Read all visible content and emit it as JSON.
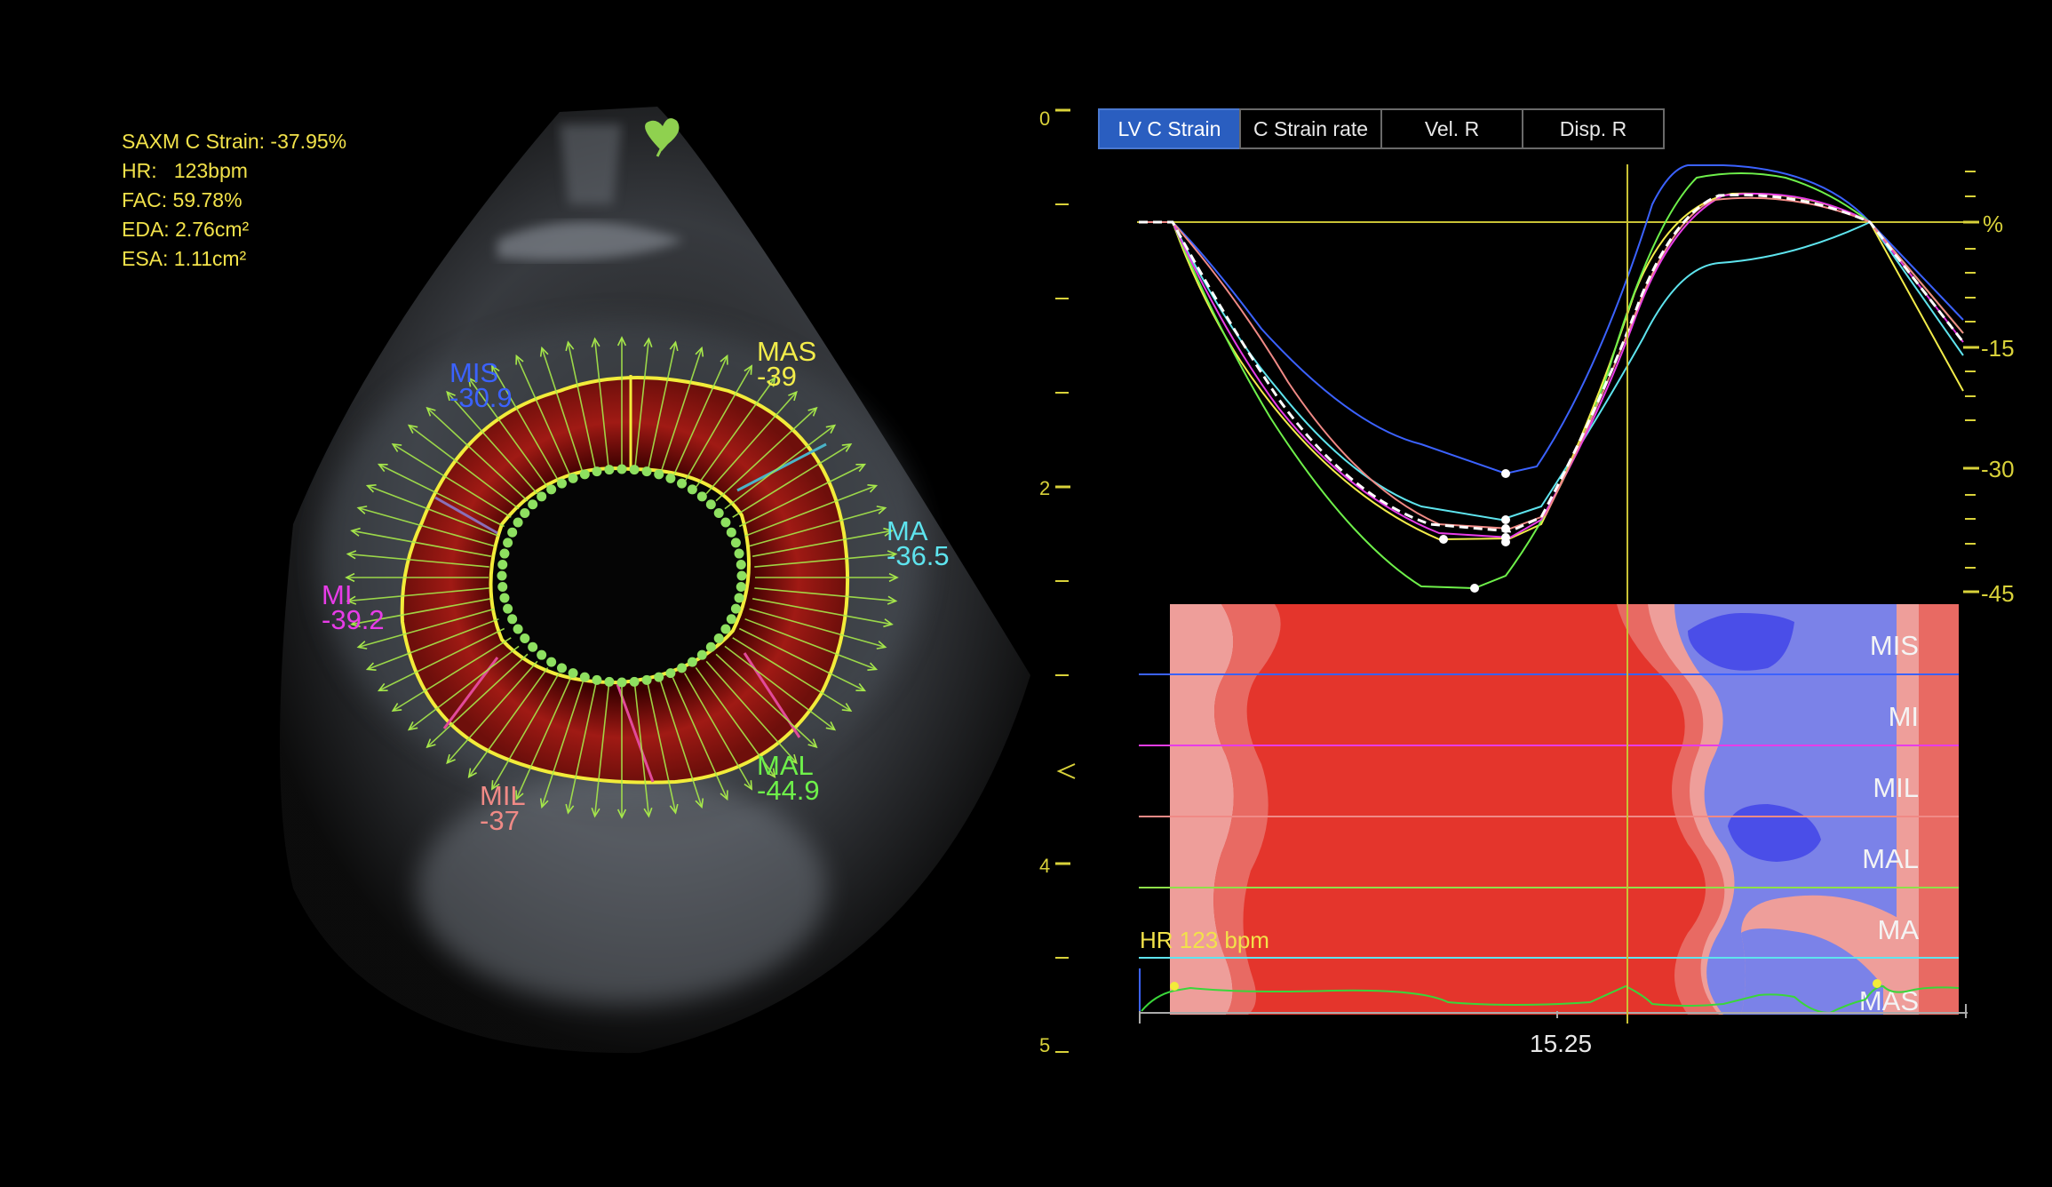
{
  "measurements": {
    "strain": "SAXM C Strain: -37.95%",
    "hr": "HR:   123bpm",
    "fac": "FAC: 59.78%",
    "eda": "EDA: 2.76cm²",
    "esa": "ESA: 1.11cm²"
  },
  "segments": [
    {
      "name": "MIS",
      "value": "-30.9",
      "color": "#3b62ff"
    },
    {
      "name": "MAS",
      "value": "-39",
      "color": "#f2ec4a"
    },
    {
      "name": "MA",
      "value": "-36.5",
      "color": "#5ee4ee"
    },
    {
      "name": "MI",
      "value": "-39.2",
      "color": "#e83ce8"
    },
    {
      "name": "MIL",
      "value": "-37",
      "color": "#f08a86"
    },
    {
      "name": "MAL",
      "value": "-44.9",
      "color": "#6ef04a"
    }
  ],
  "depth_scale": {
    "labels": [
      "0",
      "2",
      "4",
      "5"
    ]
  },
  "tabs": [
    {
      "label": "LV C Strain",
      "active": true
    },
    {
      "label": "C Strain rate",
      "active": false
    },
    {
      "label": "Vel. R",
      "active": false
    },
    {
      "label": "Disp. R",
      "active": false
    }
  ],
  "strain_axis": {
    "unit": "%",
    "labels": [
      "-15",
      "-30",
      "-45"
    ]
  },
  "time_label": "15.25",
  "hr_label": "HR 123 bpm",
  "colormap_rows": [
    "MIS",
    "MI",
    "MIL",
    "MAL",
    "MA",
    "MAS"
  ],
  "colors": {
    "ecg": "#3ad63a",
    "axis_yellow": "#d9d23a",
    "cursor": "#c9c235",
    "map_red": "#e4352c",
    "map_blue": "#7b82e8"
  }
}
